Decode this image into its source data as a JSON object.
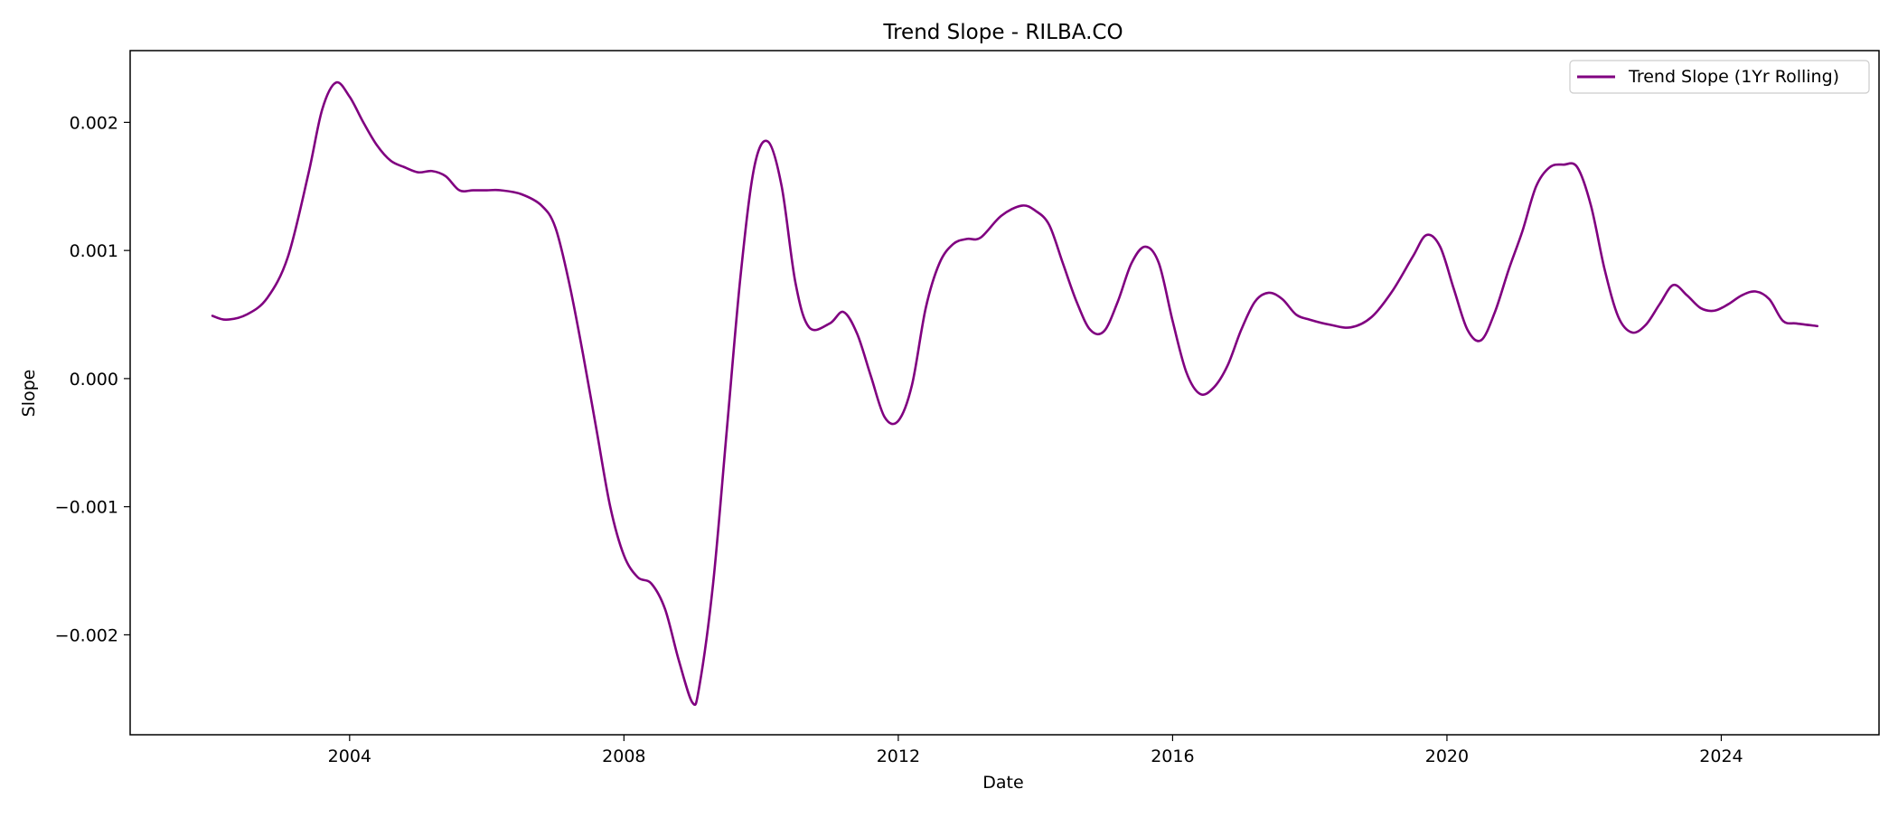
{
  "chart_data": {
    "type": "line",
    "title": "Trend Slope - RILBA.CO",
    "xlabel": "Date",
    "ylabel": "Slope",
    "xlim": [
      2000.8,
      2026.3
    ],
    "ylim": [
      -0.00278,
      0.00256
    ],
    "x_ticks": [
      2004,
      2008,
      2012,
      2016,
      2020,
      2024
    ],
    "x_tick_labels": [
      "2004",
      "2008",
      "2012",
      "2016",
      "2020",
      "2024"
    ],
    "y_ticks": [
      -0.002,
      -0.001,
      0.0,
      0.001,
      0.002
    ],
    "y_tick_labels": [
      "−0.002",
      "−0.001",
      "0.000",
      "0.001",
      "0.002"
    ],
    "grid": false,
    "legend_position": "top-right",
    "series": [
      {
        "name": "Trend Slope (1Yr Rolling)",
        "color": "#800080",
        "x": [
          2002.0,
          2002.2,
          2002.5,
          2002.8,
          2003.1,
          2003.4,
          2003.6,
          2003.8,
          2004.0,
          2004.2,
          2004.4,
          2004.6,
          2004.8,
          2005.0,
          2005.2,
          2005.4,
          2005.6,
          2005.8,
          2006.0,
          2006.2,
          2006.5,
          2006.8,
          2007.0,
          2007.2,
          2007.4,
          2007.6,
          2007.8,
          2008.0,
          2008.2,
          2008.4,
          2008.6,
          2008.8,
          2009.0,
          2009.1,
          2009.3,
          2009.5,
          2009.7,
          2009.9,
          2010.1,
          2010.3,
          2010.5,
          2010.7,
          2011.0,
          2011.2,
          2011.4,
          2011.6,
          2011.8,
          2012.0,
          2012.2,
          2012.4,
          2012.6,
          2012.8,
          2013.0,
          2013.2,
          2013.5,
          2013.8,
          2014.0,
          2014.2,
          2014.4,
          2014.6,
          2014.8,
          2015.0,
          2015.2,
          2015.4,
          2015.6,
          2015.8,
          2016.0,
          2016.2,
          2016.4,
          2016.6,
          2016.8,
          2017.0,
          2017.2,
          2017.4,
          2017.6,
          2017.8,
          2018.0,
          2018.3,
          2018.6,
          2018.9,
          2019.2,
          2019.5,
          2019.7,
          2019.9,
          2020.1,
          2020.3,
          2020.5,
          2020.7,
          2020.9,
          2021.1,
          2021.3,
          2021.5,
          2021.7,
          2021.9,
          2022.1,
          2022.3,
          2022.5,
          2022.7,
          2022.9,
          2023.1,
          2023.3,
          2023.5,
          2023.7,
          2023.9,
          2024.1,
          2024.3,
          2024.5,
          2024.7,
          2024.9,
          2025.1,
          2025.4
        ],
        "y": [
          0.00049,
          0.00046,
          0.0005,
          0.00063,
          0.00095,
          0.0016,
          0.0021,
          0.00231,
          0.0022,
          0.002,
          0.00182,
          0.0017,
          0.00165,
          0.00161,
          0.00162,
          0.00158,
          0.00147,
          0.00147,
          0.00147,
          0.00147,
          0.00144,
          0.00135,
          0.00118,
          0.00075,
          0.0002,
          -0.0004,
          -0.001,
          -0.00138,
          -0.00155,
          -0.0016,
          -0.0018,
          -0.0022,
          -0.00253,
          -0.0024,
          -0.0016,
          -0.0004,
          0.0008,
          0.00165,
          0.00185,
          0.0015,
          0.00075,
          0.0004,
          0.00043,
          0.00052,
          0.00035,
          2e-05,
          -0.0003,
          -0.00033,
          -5e-05,
          0.00055,
          0.0009,
          0.00105,
          0.00109,
          0.0011,
          0.00127,
          0.00135,
          0.00131,
          0.0012,
          0.0009,
          0.0006,
          0.00038,
          0.00037,
          0.0006,
          0.0009,
          0.00103,
          0.0009,
          0.00045,
          5e-05,
          -0.00012,
          -7e-05,
          0.0001,
          0.00038,
          0.0006,
          0.00067,
          0.00062,
          0.0005,
          0.00046,
          0.00042,
          0.0004,
          0.00048,
          0.00068,
          0.00095,
          0.00112,
          0.00103,
          0.0007,
          0.00038,
          0.0003,
          0.00052,
          0.00085,
          0.00115,
          0.0015,
          0.00165,
          0.00167,
          0.00165,
          0.00135,
          0.00085,
          0.00048,
          0.00036,
          0.00042,
          0.00058,
          0.00073,
          0.00065,
          0.00055,
          0.00053,
          0.00058,
          0.00065,
          0.00068,
          0.00062,
          0.00045,
          0.00043,
          0.00041
        ]
      }
    ]
  }
}
